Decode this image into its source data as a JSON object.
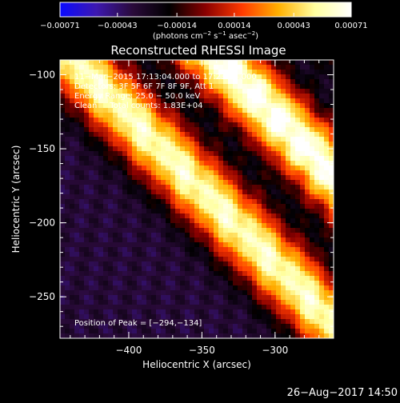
{
  "chart_data": {
    "type": "heatmap",
    "title": "Reconstructed RHESSI Image",
    "xlabel": "Heliocentric X (arcsec)",
    "ylabel": "Heliocentric Y (arcsec)",
    "xlim": [
      -447,
      -260
    ],
    "ylim": [
      -278,
      -90
    ],
    "x_ticks": [
      -400,
      -350,
      -300
    ],
    "y_ticks": [
      -100,
      -150,
      -200,
      -250
    ],
    "x_tick_labels": [
      "−400",
      "−350",
      "−300"
    ],
    "y_tick_labels": [
      "−100",
      "−150",
      "−200",
      "−250"
    ],
    "colorbar": {
      "min": -0.00071,
      "max": 0.00071,
      "ticks": [
        -0.00071,
        -0.00043,
        -0.00014,
        0.00014,
        0.00043,
        0.00071
      ],
      "tick_labels": [
        "−0.00071",
        "−0.00043",
        "−0.00014",
        "0.00014",
        "0.00043",
        "0.00071"
      ],
      "unit_parts": [
        "(photons cm",
        "−2",
        " s",
        "−1",
        " asec",
        "−2",
        ")"
      ],
      "colors": [
        "#0a0aff",
        "#3d18b0",
        "#2a0a3a",
        "#000000",
        "#8a0000",
        "#ff3a00",
        "#ffb000",
        "#ffffa0",
        "#ffffff"
      ]
    },
    "annotations": {
      "time": "11−Mar−2015 17:13:04.000 to 17:23:04.000",
      "detectors": "Detectors: 3F 5F 6F 7F 8F 9F, Att 1",
      "energy": "Energy Range: 25.0 − 50.0 keV",
      "method": "Clean     Total counts: 1.83E+04",
      "peak": "Position of Peak = [−294,−134]"
    },
    "peak_position": [
      -294,
      -134
    ],
    "bands": [
      {
        "name": "upper-left",
        "offset": -100,
        "amp": 0.0006
      },
      {
        "name": "central",
        "offset": 0,
        "amp": 0.00071
      },
      {
        "name": "lower-right",
        "offset": 110,
        "amp": 0.0006
      }
    ]
  },
  "footer": {
    "date": "26−Aug−2017 14:50"
  }
}
